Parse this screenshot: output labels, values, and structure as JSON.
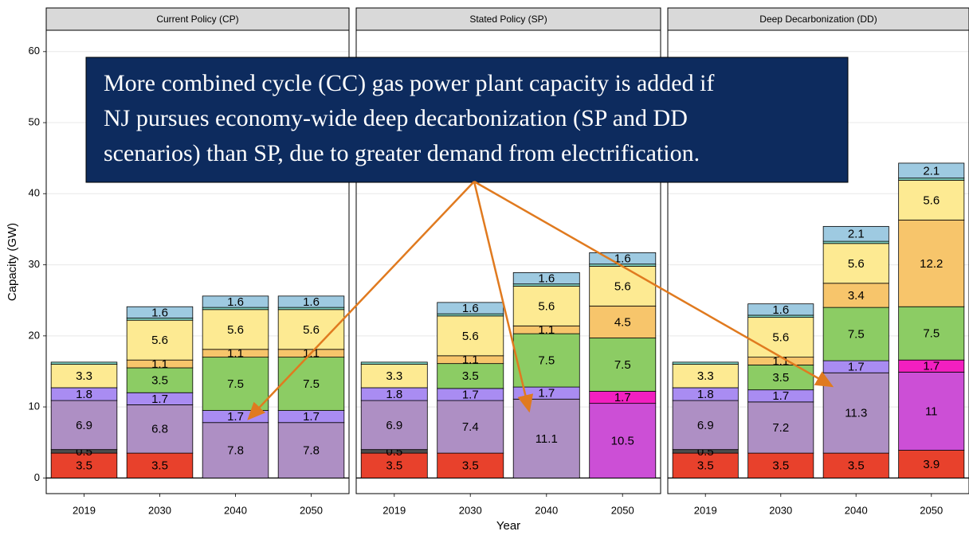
{
  "chart_data": [
    {
      "type": "bar",
      "stacked": true,
      "title": "Current Policy (CP)",
      "ylabel": "Capacity (GW)",
      "categories": [
        "2019",
        "2030",
        "2040",
        "2050"
      ],
      "ylim": [
        -2.2,
        63
      ],
      "yticks": [
        0,
        10,
        20,
        30,
        40,
        50,
        60
      ],
      "grid": true,
      "series": [
        {
          "color": "#e8412c",
          "values": [
            3.5,
            3.5,
            null,
            null
          ]
        },
        {
          "color": "#4d4d4d",
          "values": [
            0.5,
            null,
            null,
            null
          ]
        },
        {
          "color": "#ae8fc4",
          "values": [
            6.9,
            6.8,
            7.8,
            7.8
          ]
        },
        {
          "color": "#cc4fd6",
          "values": [
            null,
            null,
            null,
            null
          ]
        },
        {
          "color": "#f21fc0",
          "values": [
            null,
            null,
            null,
            null
          ]
        },
        {
          "color": "#a98cf2",
          "values": [
            1.8,
            1.7,
            1.7,
            1.7
          ]
        },
        {
          "color": "#8ccc64",
          "values": [
            null,
            3.5,
            7.5,
            7.5
          ]
        },
        {
          "color": "#f7c56b",
          "values": [
            null,
            1.1,
            1.1,
            1.1
          ]
        },
        {
          "color": "#fdea92",
          "values": [
            3.3,
            5.6,
            5.6,
            5.6
          ]
        },
        {
          "color": "#7fd1c0",
          "values": [
            0.3,
            0.3,
            0.3,
            0.3
          ]
        },
        {
          "color": "#9ecae1",
          "values": [
            null,
            1.6,
            1.6,
            1.6
          ]
        }
      ]
    },
    {
      "type": "bar",
      "stacked": true,
      "title": "Stated Policy (SP)",
      "xlabel": "Year",
      "categories": [
        "2019",
        "2030",
        "2040",
        "2050"
      ],
      "ylim": [
        -2.2,
        63
      ],
      "yticks": [
        0,
        10,
        20,
        30,
        40,
        50,
        60
      ],
      "grid": true,
      "series": [
        {
          "color": "#e8412c",
          "values": [
            3.5,
            3.5,
            null,
            null
          ]
        },
        {
          "color": "#4d4d4d",
          "values": [
            0.5,
            null,
            null,
            null
          ]
        },
        {
          "color": "#ae8fc4",
          "values": [
            6.9,
            7.4,
            11.1,
            null
          ]
        },
        {
          "color": "#cc4fd6",
          "values": [
            null,
            null,
            null,
            10.5
          ]
        },
        {
          "color": "#f21fc0",
          "values": [
            null,
            null,
            null,
            1.7
          ]
        },
        {
          "color": "#a98cf2",
          "values": [
            1.8,
            1.7,
            1.7,
            null
          ]
        },
        {
          "color": "#8ccc64",
          "values": [
            null,
            3.5,
            7.5,
            7.5
          ]
        },
        {
          "color": "#f7c56b",
          "values": [
            null,
            1.1,
            1.1,
            4.5
          ]
        },
        {
          "color": "#fdea92",
          "values": [
            3.3,
            5.6,
            5.6,
            5.6
          ]
        },
        {
          "color": "#7fd1c0",
          "values": [
            0.3,
            0.3,
            0.3,
            0.3
          ]
        },
        {
          "color": "#9ecae1",
          "values": [
            null,
            1.6,
            1.6,
            1.6
          ]
        }
      ]
    },
    {
      "type": "bar",
      "stacked": true,
      "title": "Deep Decarbonization (DD)",
      "categories": [
        "2019",
        "2030",
        "2040",
        "2050"
      ],
      "ylim": [
        -2.2,
        63
      ],
      "yticks": [
        0,
        10,
        20,
        30,
        40,
        50,
        60
      ],
      "grid": true,
      "series": [
        {
          "color": "#e8412c",
          "values": [
            3.5,
            3.5,
            3.5,
            3.9
          ]
        },
        {
          "color": "#4d4d4d",
          "values": [
            0.5,
            null,
            null,
            null
          ]
        },
        {
          "color": "#ae8fc4",
          "values": [
            6.9,
            7.2,
            11.3,
            null
          ]
        },
        {
          "color": "#cc4fd6",
          "values": [
            null,
            null,
            null,
            11
          ]
        },
        {
          "color": "#f21fc0",
          "values": [
            null,
            null,
            null,
            1.7
          ]
        },
        {
          "color": "#a98cf2",
          "values": [
            1.8,
            1.7,
            1.7,
            null
          ]
        },
        {
          "color": "#8ccc64",
          "values": [
            null,
            3.5,
            7.5,
            7.5
          ]
        },
        {
          "color": "#f7c56b",
          "values": [
            null,
            1.1,
            3.4,
            12.2
          ]
        },
        {
          "color": "#fdea92",
          "values": [
            3.3,
            5.6,
            5.6,
            5.6
          ]
        },
        {
          "color": "#7fd1c0",
          "values": [
            0.3,
            0.3,
            0.3,
            0.3
          ]
        },
        {
          "color": "#9ecae1",
          "values": [
            null,
            1.6,
            2.1,
            2.1
          ]
        }
      ]
    }
  ],
  "annotation": [
    "More combined cycle (CC) gas power plant capacity is added if",
    "NJ pursues economy-wide deep decarbonization (SP and DD",
    "scenarios) than SP, due to greater demand from electrification."
  ]
}
